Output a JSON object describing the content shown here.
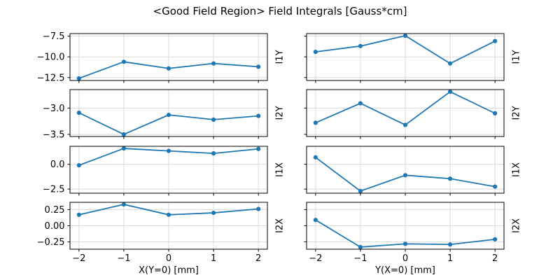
{
  "title": "<Good Field Region> Field Integrals [Gauss*cm]",
  "style": {
    "line_color": "#1f77b4",
    "grid_color": "#d9d9d9",
    "spine_color": "#000000",
    "text_color": "#000000",
    "background": "#ffffff"
  },
  "chart_data": {
    "type": "line",
    "title": "<Good Field Region> Field Integrals [Gauss*cm]",
    "grid": true,
    "legend": "none",
    "marker": "circle",
    "x_domain": [
      -2.2,
      2.2
    ],
    "y_pad_frac": 0.05,
    "columns": [
      {
        "xlabel": "X(Y=0) [mm]"
      },
      {
        "xlabel": "Y(X=0) [mm]"
      }
    ],
    "xticks": [
      -2,
      -1,
      0,
      1,
      2
    ],
    "xtick_labels": [
      "−2",
      "−1",
      "0",
      "1",
      "2"
    ],
    "subplots": [
      {
        "id": "i1y-vs-x",
        "row": 0,
        "col": 0,
        "right_label": "I1Y",
        "x": [
          -2,
          -1,
          0,
          1,
          2
        ],
        "values": [
          -12.6,
          -10.6,
          -11.4,
          -10.8,
          -11.2
        ],
        "yticks": [
          -7.5,
          -10.0,
          -12.5
        ],
        "ytick_labels": [
          "−7.5",
          "−10.0",
          "−12.5"
        ],
        "show_ytick_labels": true,
        "show_xtick_labels": false,
        "xlabel": ""
      },
      {
        "id": "i1y-vs-y",
        "row": 0,
        "col": 1,
        "right_label": "I1Y",
        "x": [
          -2,
          -1,
          0,
          1,
          2
        ],
        "values": [
          -9.4,
          -8.7,
          -7.45,
          -10.8,
          -8.1
        ],
        "yticks": [
          -7.5,
          -10.0,
          -12.5
        ],
        "ytick_labels": [
          "−7.5",
          "−10.0",
          "−12.5"
        ],
        "show_ytick_labels": false,
        "show_xtick_labels": false,
        "xlabel": ""
      },
      {
        "id": "i2y-vs-x",
        "row": 1,
        "col": 0,
        "right_label": "I2Y",
        "x": [
          -2,
          -1,
          0,
          1,
          2
        ],
        "values": [
          -3.09,
          -3.5,
          -3.13,
          -3.22,
          -3.15
        ],
        "yticks": [
          -3.0,
          -3.5
        ],
        "ytick_labels": [
          "−3.0",
          "−3.5"
        ],
        "show_ytick_labels": true,
        "show_xtick_labels": false,
        "xlabel": ""
      },
      {
        "id": "i2y-vs-y",
        "row": 1,
        "col": 1,
        "right_label": "I2Y",
        "x": [
          -2,
          -1,
          0,
          1,
          2
        ],
        "values": [
          -3.28,
          -2.91,
          -3.32,
          -2.69,
          -3.1
        ],
        "yticks": [
          -3.0,
          -3.5
        ],
        "ytick_labels": [
          "−3.0",
          "−3.5"
        ],
        "show_ytick_labels": false,
        "show_xtick_labels": false,
        "xlabel": ""
      },
      {
        "id": "i1x-vs-x",
        "row": 2,
        "col": 0,
        "right_label": "I1X",
        "x": [
          -2,
          -1,
          0,
          1,
          2
        ],
        "values": [
          -0.1,
          1.6,
          1.35,
          1.1,
          1.55
        ],
        "yticks": [
          0.0,
          -2.5
        ],
        "ytick_labels": [
          "0.0",
          "−2.5"
        ],
        "show_ytick_labels": true,
        "show_xtick_labels": false,
        "xlabel": ""
      },
      {
        "id": "i1x-vs-y",
        "row": 2,
        "col": 1,
        "right_label": "I1X",
        "x": [
          -2,
          -1,
          0,
          1,
          2
        ],
        "values": [
          0.7,
          -2.7,
          -1.1,
          -1.45,
          -2.25
        ],
        "yticks": [
          0.0,
          -2.5
        ],
        "ytick_labels": [
          "0.0",
          "−2.5"
        ],
        "show_ytick_labels": false,
        "show_xtick_labels": false,
        "xlabel": ""
      },
      {
        "id": "i2x-vs-x",
        "row": 3,
        "col": 0,
        "right_label": "I2X",
        "x": [
          -2,
          -1,
          0,
          1,
          2
        ],
        "values": [
          0.17,
          0.33,
          0.17,
          0.2,
          0.26
        ],
        "yticks": [
          0.25,
          0.0,
          -0.25
        ],
        "ytick_labels": [
          "0.25",
          "0.00",
          "−0.25"
        ],
        "show_ytick_labels": true,
        "show_xtick_labels": true,
        "xlabel": "X(Y=0) [mm]"
      },
      {
        "id": "i2x-vs-y",
        "row": 3,
        "col": 1,
        "right_label": "I2X",
        "x": [
          -2,
          -1,
          0,
          1,
          2
        ],
        "values": [
          0.09,
          -0.33,
          -0.28,
          -0.29,
          -0.21
        ],
        "yticks": [
          0.25,
          0.0,
          -0.25
        ],
        "ytick_labels": [
          "0.25",
          "0.00",
          "−0.25"
        ],
        "show_ytick_labels": false,
        "show_xtick_labels": true,
        "xlabel": "Y(X=0) [mm]"
      }
    ]
  }
}
